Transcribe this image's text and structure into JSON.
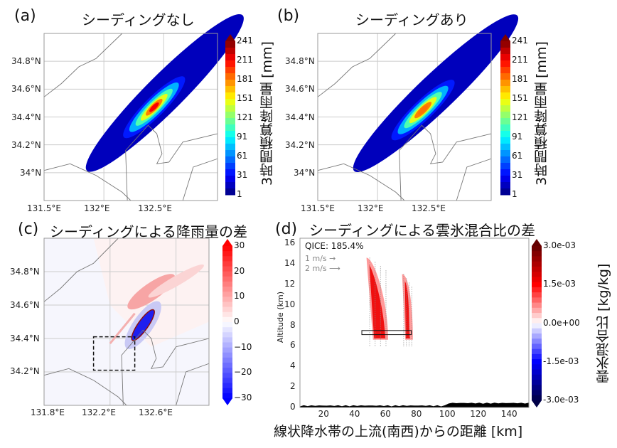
{
  "panels": {
    "a": {
      "label": "(a)",
      "title": "シーディングなし",
      "xticks": [
        "131.5°E",
        "132°E",
        "132.5°E"
      ],
      "yticks": [
        "34.8°N",
        "34.6°N",
        "34.4°N",
        "34.2°N",
        "34°N"
      ],
      "colorbar": {
        "ticks": [
          "241",
          "211",
          "181",
          "151",
          "121",
          "91",
          "61",
          "31",
          "1"
        ],
        "label": "3時間積算降雨量 [mm]"
      }
    },
    "b": {
      "label": "(b)",
      "title": "シーディングあり",
      "xticks": [
        "131.5°E",
        "132°E",
        "132.5°E"
      ],
      "yticks": [
        "34.8°N",
        "34.6°N",
        "34.4°N",
        "34.2°N",
        "34°N"
      ],
      "colorbar": {
        "ticks": [
          "241",
          "211",
          "181",
          "151",
          "121",
          "91",
          "61",
          "31",
          "1"
        ],
        "label": "3時間積算降雨量 [mm]"
      }
    },
    "c": {
      "label": "(c)",
      "title": "シーディングによる降雨量の差",
      "xticks": [
        "131.8°E",
        "132.2°E",
        "132.6°E"
      ],
      "yticks": [
        "34.8°N",
        "34.6°N",
        "34.4°N",
        "34.2°N"
      ],
      "colorbar": {
        "ticks": [
          "30",
          "20",
          "10",
          "0",
          "−10",
          "−20",
          "−30"
        ],
        "label": ""
      }
    },
    "d": {
      "label": "(d)",
      "title": "シーディングによる雲氷混合比の差",
      "annotation": "QICE: 185.4%",
      "wind_legend": [
        "1 m/s",
        "2 m/s"
      ],
      "ylabel": "Altitude (km)",
      "xlabel": "線状降水帯の上流(南西)からの距離 [km]",
      "xticks": [
        "20",
        "40",
        "60",
        "80",
        "100",
        "120",
        "140"
      ],
      "yticks": [
        "16",
        "14",
        "12",
        "10",
        "8",
        "6",
        "4",
        "2",
        "0"
      ],
      "colorbar": {
        "ticks": [
          "3.0e-03",
          "1.5e-03",
          "0.0e+00",
          "-1.5e-03",
          "-3.0e-03"
        ],
        "label": "雲氷混合比 [kg/kg]"
      }
    }
  },
  "chart_data": [
    {
      "type": "heatmap",
      "title": "シーディングなし",
      "xlabel": "",
      "ylabel": "",
      "xlim": [
        131.5,
        132.95
      ],
      "ylim": [
        33.8,
        35.0
      ],
      "grid": true,
      "colorbar_range": [
        1,
        241
      ],
      "peak": {
        "lon": 132.42,
        "lat": 34.47,
        "value": 230
      },
      "band_axis": [
        [
          131.9,
          34.05
        ],
        [
          132.95,
          34.95
        ]
      ]
    },
    {
      "type": "heatmap",
      "title": "シーディングあり",
      "xlabel": "",
      "ylabel": "",
      "xlim": [
        131.5,
        132.95
      ],
      "ylim": [
        33.8,
        35.0
      ],
      "grid": true,
      "colorbar_range": [
        1,
        241
      ],
      "peak": {
        "lon": 132.38,
        "lat": 34.45,
        "value": 200
      },
      "band_axis": [
        [
          131.85,
          34.05
        ],
        [
          132.95,
          34.95
        ]
      ]
    },
    {
      "type": "heatmap",
      "title": "シーディングによる降雨量の差",
      "xlim": [
        131.8,
        132.8
      ],
      "ylim": [
        34.0,
        35.0
      ],
      "grid": true,
      "colorbar_range": [
        -30,
        30
      ],
      "negative_core": {
        "lon": 132.4,
        "lat": 34.48,
        "value": -30
      },
      "positive_core": {
        "lon": 132.45,
        "lat": 34.68,
        "value": 25
      },
      "dashed_box": {
        "lon": [
          132.1,
          132.35
        ],
        "lat": [
          34.21,
          34.41
        ]
      }
    },
    {
      "type": "heatmap",
      "title": "シーディングによる雲氷混合比の差",
      "xlabel": "線状降水帯の上流(南西)からの距離 [km]",
      "ylabel": "Altitude (km)",
      "xlim": [
        5,
        153
      ],
      "ylim": [
        0,
        16.5
      ],
      "grid": false,
      "colorbar_range": [
        -0.003,
        0.003
      ],
      "annotation": "QICE: 185.4%",
      "features": [
        {
          "name": "plume-1",
          "x_range": [
            48,
            62
          ],
          "z_range": [
            6.6,
            14.6
          ],
          "sign": "positive"
        },
        {
          "name": "plume-2",
          "x_range": [
            71,
            78
          ],
          "z_range": [
            6.6,
            13.0
          ],
          "sign": "positive"
        }
      ],
      "seeding_box": {
        "x": [
          45,
          77
        ],
        "z": [
          7.1,
          7.5
        ]
      }
    }
  ]
}
